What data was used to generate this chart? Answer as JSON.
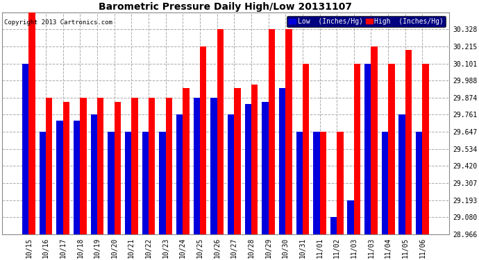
{
  "title": "Barometric Pressure Daily High/Low 20131107",
  "copyright": "Copyright 2013 Cartronics.com",
  "legend_low": "Low  (Inches/Hg)",
  "legend_high": "High  (Inches/Hg)",
  "categories": [
    "10/15",
    "10/16",
    "10/17",
    "10/18",
    "10/19",
    "10/20",
    "10/21",
    "10/22",
    "10/23",
    "10/24",
    "10/25",
    "10/26",
    "10/27",
    "10/28",
    "10/29",
    "10/30",
    "10/31",
    "11/01",
    "11/02",
    "11/03",
    "11/03",
    "11/04",
    "11/05",
    "11/06"
  ],
  "low_values": [
    30.101,
    29.647,
    29.72,
    29.72,
    29.761,
    29.647,
    29.647,
    29.647,
    29.647,
    29.761,
    29.874,
    29.874,
    29.761,
    29.834,
    29.847,
    29.94,
    29.647,
    29.647,
    29.08,
    29.193,
    30.101,
    29.647,
    29.761,
    29.647
  ],
  "high_values": [
    30.441,
    29.874,
    29.847,
    29.874,
    29.874,
    29.847,
    29.874,
    29.874,
    29.874,
    29.94,
    30.215,
    30.328,
    29.94,
    29.96,
    30.328,
    30.328,
    30.101,
    29.647,
    29.647,
    30.101,
    30.215,
    30.101,
    30.193,
    30.101
  ],
  "ymin": 28.966,
  "ymax": 30.441,
  "yticks": [
    28.966,
    29.08,
    29.193,
    29.307,
    29.42,
    29.534,
    29.647,
    29.761,
    29.874,
    29.988,
    30.101,
    30.215,
    30.328
  ],
  "bar_width": 0.38,
  "low_color": "#0000dd",
  "high_color": "#ff0000",
  "bg_color": "#ffffff",
  "grid_color": "#aaaaaa",
  "title_fontsize": 10,
  "tick_fontsize": 7,
  "copyright_fontsize": 6.5,
  "legend_bg": "#000080",
  "legend_fontsize": 7
}
